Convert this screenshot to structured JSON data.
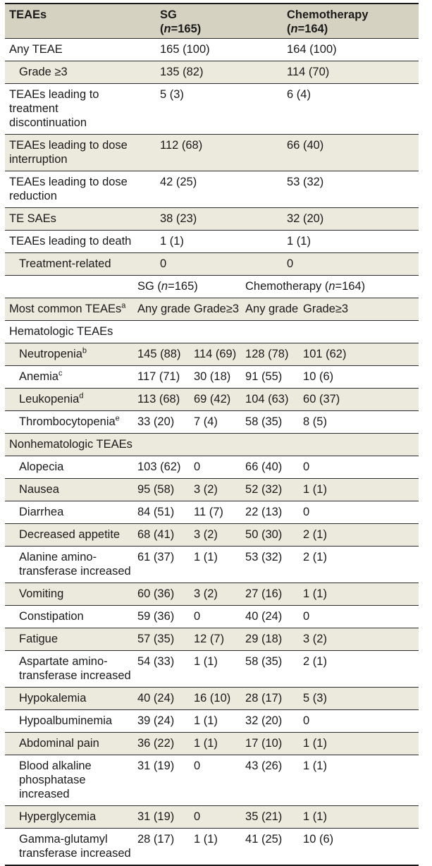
{
  "colors": {
    "header_bg": "#d6d2c2",
    "shaded_row_bg": "#ece9dd",
    "rule_color": "#2b2b2b",
    "text_color": "#1a1a1a"
  },
  "top_header": {
    "col1": "TEAEs",
    "sg": "SG",
    "chemo": "Chemotherapy",
    "paren_open": "(",
    "n": "n",
    "sg_count": "=165)",
    "chemo_count": "=164)"
  },
  "overall": {
    "rows": [
      {
        "label": "Any TEAE",
        "v1": "165 (100)",
        "v2": "164 (100)"
      },
      {
        "label": "Grade ≥3",
        "v1": "135 (82)",
        "v2": "114 (70)"
      },
      {
        "label": "TEAEs leading to\ntreatment discontinuation",
        "v1": "5 (3)",
        "v2": "6 (4)"
      },
      {
        "label": "TEAEs leading to dose\ninterruption",
        "v1": "112 (68)",
        "v2": "66 (40)"
      },
      {
        "label": "TEAEs leading to dose\nreduction",
        "v1": "42 (25)",
        "v2": "53 (32)"
      },
      {
        "label": "TE SAEs",
        "v1": "38 (23)",
        "v2": "32 (20)"
      },
      {
        "label": "TEAEs leading to death",
        "v1": "1 (1)",
        "v2": "1 (1)"
      },
      {
        "label": "Treatment-related",
        "v1": "0",
        "v2": "0"
      }
    ]
  },
  "mid_header": {
    "sg_pre": "SG (",
    "sg_post": "=165)",
    "chemo_pre": "Chemotherapy (",
    "chemo_post": "=164)",
    "n": "n"
  },
  "common_header": {
    "label": "Most common TEAEs",
    "sup": "a",
    "any1": "Any grade",
    "g31": "Grade≥3",
    "any2": "Any grade",
    "g32": "Grade≥3"
  },
  "hema": {
    "title": "Hematologic TEAEs",
    "rows": [
      {
        "label": "Neutropenia",
        "sup": "b",
        "v1": "145 (88)",
        "v2": "114 (69)",
        "v3": "128 (78)",
        "v4": "101 (62)"
      },
      {
        "label": "Anemia",
        "sup": "c",
        "v1": "117 (71)",
        "v2": "30 (18)",
        "v3": "91 (55)",
        "v4": "10 (6)"
      },
      {
        "label": "Leukopenia",
        "sup": "d",
        "v1": "113 (68)",
        "v2": "69 (42)",
        "v3": "104 (63)",
        "v4": "60 (37)"
      },
      {
        "label": "Thrombocytopenia",
        "sup": "e",
        "v1": "33 (20)",
        "v2": "7 (4)",
        "v3": "58 (35)",
        "v4": "8 (5)"
      }
    ]
  },
  "nonhema": {
    "title": "Nonhematologic TEAEs",
    "rows": [
      {
        "label": "Alopecia",
        "v1": "103 (62)",
        "v2": "0",
        "v3": "66 (40)",
        "v4": "0"
      },
      {
        "label": "Nausea",
        "v1": "95 (58)",
        "v2": "3 (2)",
        "v3": "52 (32)",
        "v4": "1 (1)"
      },
      {
        "label": "Diarrhea",
        "v1": "84 (51)",
        "v2": "11 (7)",
        "v3": "22 (13)",
        "v4": "0"
      },
      {
        "label": "Decreased appetite",
        "v1": "68 (41)",
        "v2": "3 (2)",
        "v3": "50 (30)",
        "v4": "2 (1)"
      },
      {
        "label": "Alanine amino-\ntransferase increased",
        "v1": "61 (37)",
        "v2": "1 (1)",
        "v3": "53 (32)",
        "v4": "2 (1)"
      },
      {
        "label": "Vomiting",
        "v1": "60 (36)",
        "v2": "3 (2)",
        "v3": "27 (16)",
        "v4": "1 (1)"
      },
      {
        "label": "Constipation",
        "v1": "59 (36)",
        "v2": "0",
        "v3": "40 (24)",
        "v4": "0"
      },
      {
        "label": "Fatigue",
        "v1": "57 (35)",
        "v2": "12 (7)",
        "v3": "29 (18)",
        "v4": "3 (2)"
      },
      {
        "label": "Aspartate amino-\ntransferase increased",
        "v1": "54 (33)",
        "v2": "1 (1)",
        "v3": "58 (35)",
        "v4": "2 (1)"
      },
      {
        "label": "Hypokalemia",
        "v1": "40 (24)",
        "v2": "16 (10)",
        "v3": "28 (17)",
        "v4": "5 (3)"
      },
      {
        "label": "Hypoalbuminemia",
        "v1": "39 (24)",
        "v2": "1 (1)",
        "v3": "32 (20)",
        "v4": "0"
      },
      {
        "label": "Abdominal pain",
        "v1": "36 (22)",
        "v2": "1 (1)",
        "v3": "17 (10)",
        "v4": "1 (1)"
      },
      {
        "label": "Blood alkaline\nphosphatase increased",
        "v1": "31 (19)",
        "v2": "0",
        "v3": "43 (26)",
        "v4": "1 (1)"
      },
      {
        "label": "Hyperglycemia",
        "v1": "31 (19)",
        "v2": "0",
        "v3": "35 (21)",
        "v4": "1 (1)"
      },
      {
        "label": "Gamma-glutamyl\ntransferase increased",
        "v1": "28 (17)",
        "v2": "1 (1)",
        "v3": "41 (25)",
        "v4": "10 (6)"
      }
    ]
  }
}
